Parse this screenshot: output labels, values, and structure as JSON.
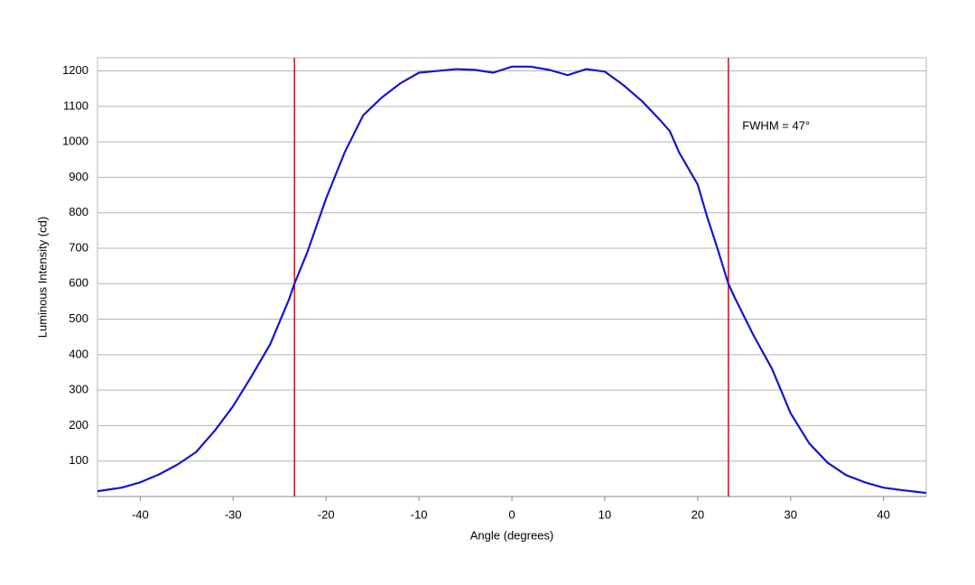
{
  "chart_data": {
    "type": "line",
    "x_label": "Angle (degrees)",
    "y_label": "Luminous Intensity (cd)",
    "x": [
      -44.6,
      -42,
      -40,
      -38,
      -36,
      -34,
      -32,
      -30,
      -28,
      -26,
      -24,
      -23.4,
      -22,
      -20,
      -18,
      -16,
      -14,
      -12,
      -10,
      -8,
      -6,
      -4,
      -2,
      0,
      2,
      4,
      6,
      8,
      10,
      12,
      14,
      16,
      17,
      18,
      20,
      21,
      22,
      23.3,
      24,
      26,
      28,
      30,
      32,
      34,
      36,
      38,
      40,
      42,
      44.6
    ],
    "series": [
      {
        "color": "#1515d0",
        "values": [
          15,
          25,
          40,
          62,
          90,
          125,
          185,
          255,
          340,
          430,
          555,
          600,
          690,
          840,
          970,
          1075,
          1125,
          1165,
          1195,
          1200,
          1205,
          1203,
          1195,
          1212,
          1212,
          1203,
          1188,
          1205,
          1198,
          1160,
          1115,
          1060,
          1030,
          970,
          880,
          790,
          710,
          600,
          560,
          455,
          360,
          235,
          150,
          95,
          60,
          40,
          25,
          18,
          10
        ]
      }
    ],
    "vlines": [
      -23.4,
      23.3
    ],
    "vline_color": "#cc2222",
    "annotation": {
      "text": "FWHM = 47°",
      "x": 24.8,
      "y": 1044
    },
    "xlim": [
      -44.6,
      44.6
    ],
    "ylim": [
      0,
      1237
    ],
    "xticks": [
      -40,
      -30,
      -20,
      -10,
      0,
      10,
      20,
      30,
      40
    ],
    "yticks": [
      100,
      200,
      300,
      400,
      500,
      600,
      700,
      800,
      900,
      1000,
      1100,
      1200
    ],
    "grid": true
  }
}
